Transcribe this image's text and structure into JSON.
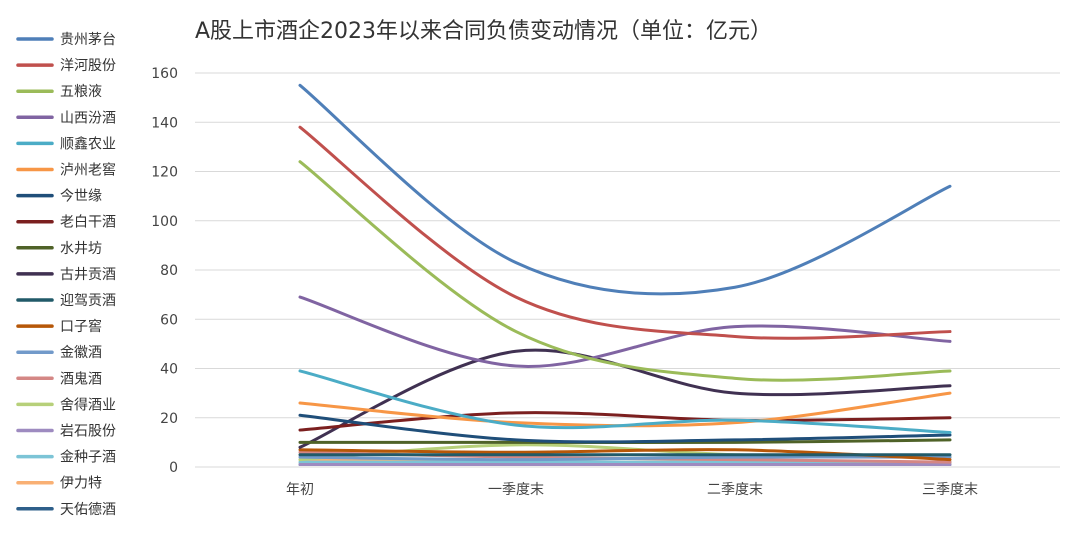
{
  "chart_data": {
    "type": "line",
    "title": "A股上市酒企2023年以来合同负债变动情况（单位：亿元）",
    "categories": [
      "年初",
      "一季度末",
      "二季度末",
      "三季度末"
    ],
    "ylim": [
      0,
      160
    ],
    "yticks": [
      0,
      20,
      40,
      60,
      80,
      100,
      120,
      140,
      160
    ],
    "grid": true,
    "legend_position": "left",
    "smooth": true,
    "series": [
      {
        "name": "贵州茅台",
        "color": "#4f7fb8",
        "values": [
          155,
          83,
          73,
          114
        ]
      },
      {
        "name": "洋河股份",
        "color": "#c0504d",
        "values": [
          138,
          69,
          53,
          55
        ]
      },
      {
        "name": "五粮液",
        "color": "#9bbb59",
        "values": [
          124,
          55,
          36,
          39
        ]
      },
      {
        "name": "山西汾酒",
        "color": "#8064a2",
        "values": [
          69,
          41,
          57,
          51
        ]
      },
      {
        "name": "顺鑫农业",
        "color": "#4bacc6",
        "values": [
          39,
          17,
          19,
          14
        ]
      },
      {
        "name": "泸州老窖",
        "color": "#f79646",
        "values": [
          26,
          18,
          18,
          30
        ]
      },
      {
        "name": "今世缘",
        "color": "#1f4e79",
        "values": [
          21,
          11,
          11,
          13
        ]
      },
      {
        "name": "老白干酒",
        "color": "#7b1f1f",
        "values": [
          15,
          22,
          19,
          20
        ]
      },
      {
        "name": "水井坊",
        "color": "#4f6228",
        "values": [
          10,
          10,
          10,
          11
        ]
      },
      {
        "name": "古井贡酒",
        "color": "#403152",
        "values": [
          8,
          47,
          30,
          33
        ]
      },
      {
        "name": "迎驾贡酒",
        "color": "#215a69",
        "values": [
          5,
          5,
          5,
          5
        ]
      },
      {
        "name": "口子窖",
        "color": "#b65708",
        "values": [
          7,
          6,
          7,
          3
        ]
      },
      {
        "name": "金徽酒",
        "color": "#729aca",
        "values": [
          4,
          3,
          4,
          4
        ]
      },
      {
        "name": "酒鬼酒",
        "color": "#d48785",
        "values": [
          6,
          4,
          3,
          2
        ]
      },
      {
        "name": "舍得酒业",
        "color": "#b7d07a",
        "values": [
          3,
          9,
          5,
          4
        ]
      },
      {
        "name": "岩石股份",
        "color": "#9e8bc0",
        "values": [
          1,
          1,
          1,
          1
        ]
      },
      {
        "name": "金种子酒",
        "color": "#7cc4d6",
        "values": [
          2,
          2,
          2,
          2
        ]
      },
      {
        "name": "伊力特",
        "color": "#f9b074",
        "values": [
          3,
          2,
          2,
          2
        ]
      },
      {
        "name": "天佑德酒",
        "color": "#2e5f8a",
        "values": [
          1,
          1,
          1,
          1
        ]
      }
    ]
  }
}
